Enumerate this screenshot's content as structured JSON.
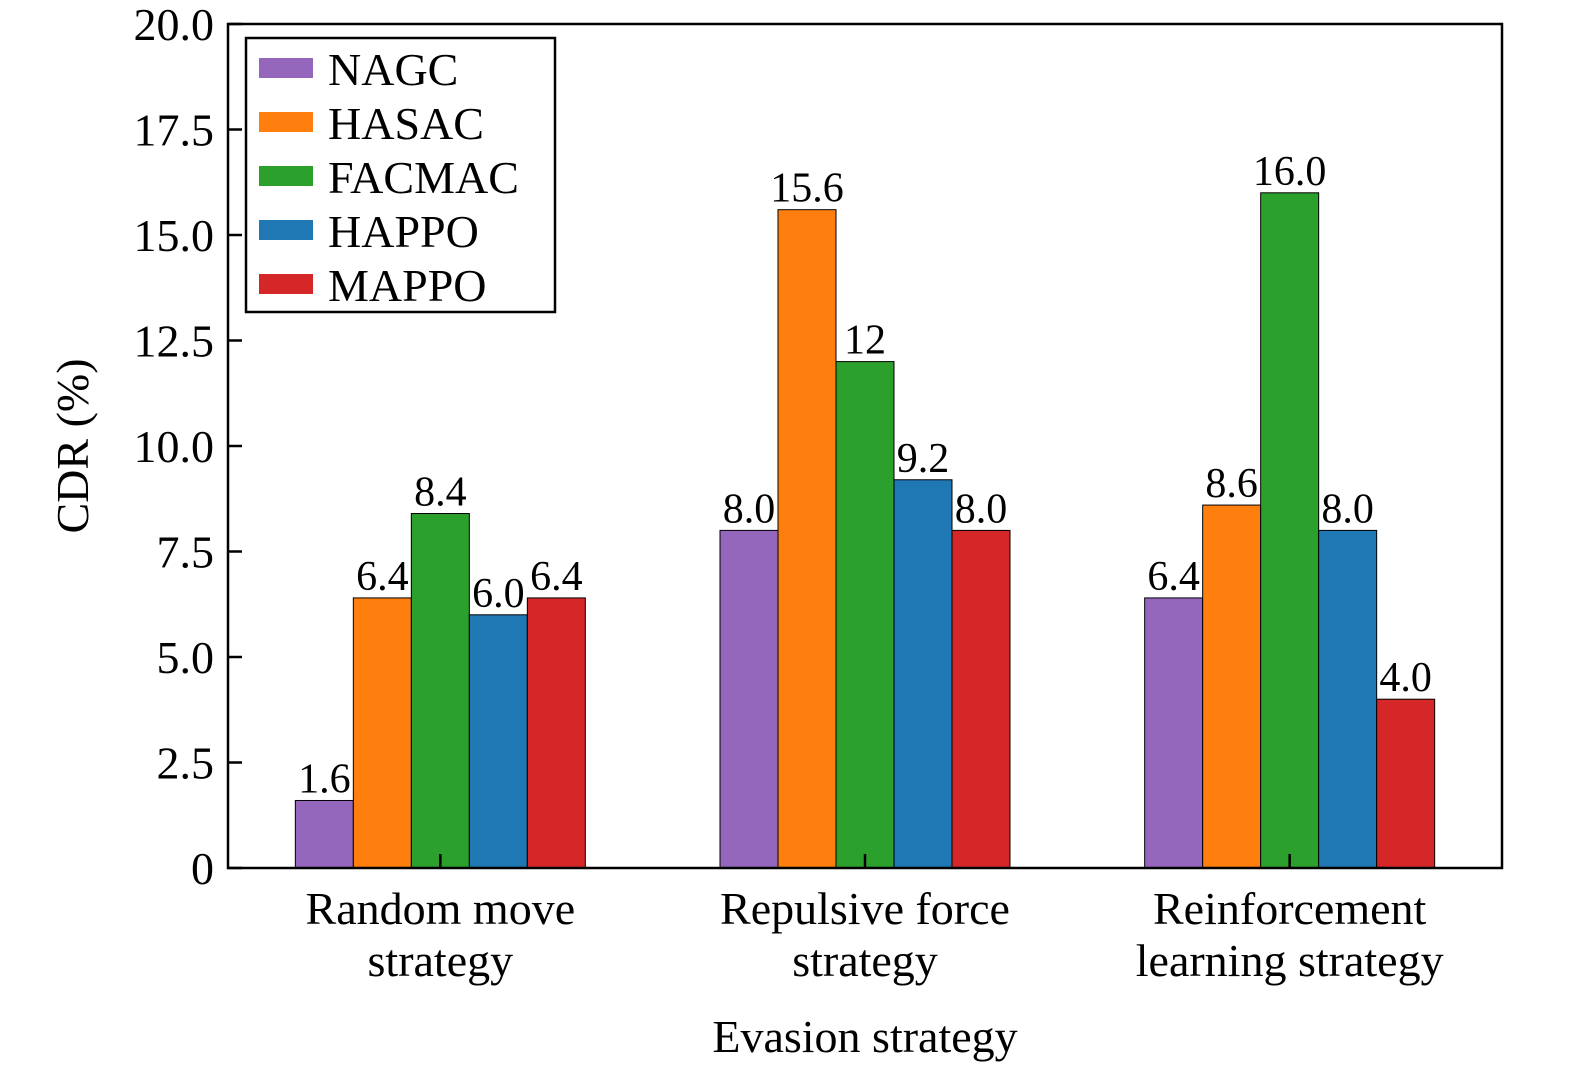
{
  "chart_data": {
    "type": "bar",
    "xlabel": "Evasion strategy",
    "ylabel": "CDR (%)",
    "ylim": [
      0,
      20
    ],
    "yticks": [
      "0",
      "2.5",
      "5.0",
      "7.5",
      "10.0",
      "12.5",
      "15.0",
      "17.5",
      "20.0"
    ],
    "ytick_values": [
      0,
      2.5,
      5,
      7.5,
      10,
      12.5,
      15,
      17.5,
      20
    ],
    "categories": [
      [
        "Random move",
        "strategy"
      ],
      [
        "Repulsive force",
        "strategy"
      ],
      [
        "Reinforcement",
        "learning strategy"
      ]
    ],
    "series": [
      {
        "name": "NAGC",
        "color": "#9467bd",
        "values": [
          1.6,
          8.0,
          6.4
        ],
        "labels": [
          "1.6",
          "8.0",
          "6.4"
        ]
      },
      {
        "name": "HASAC",
        "color": "#ff7f0e",
        "values": [
          6.4,
          15.6,
          8.6
        ],
        "labels": [
          "6.4",
          "15.6",
          "8.6"
        ]
      },
      {
        "name": "FACMAC",
        "color": "#2ca02c",
        "values": [
          8.4,
          12.0,
          16.0
        ],
        "labels": [
          "8.4",
          "12",
          "16.0"
        ]
      },
      {
        "name": "HAPPO",
        "color": "#1f77b4",
        "values": [
          6.0,
          9.2,
          8.0
        ],
        "labels": [
          "6.0",
          "9.2",
          "8.0"
        ]
      },
      {
        "name": "MAPPO",
        "color": "#d62728",
        "values": [
          6.4,
          8.0,
          4.0
        ],
        "labels": [
          "6.4",
          "8.0",
          "4.0"
        ]
      }
    ],
    "legend_position": "top-left",
    "grid": false
  }
}
